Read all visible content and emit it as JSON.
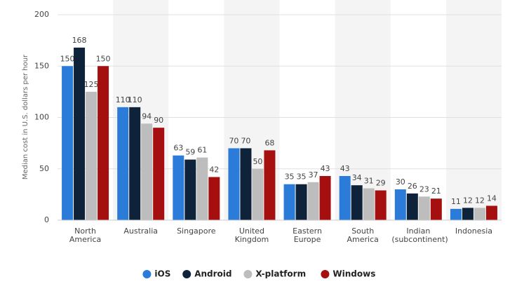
{
  "chart_data": {
    "type": "bar",
    "y_label": "Median cost in U.S. dollars per hour",
    "categories": [
      "North America",
      "Australia",
      "Singapore",
      "United Kingdom",
      "Eastern Europe",
      "South America",
      "Indian (subcontinent)",
      "Indonesia"
    ],
    "series": [
      {
        "name": "iOS",
        "color": "#2b7cd9",
        "values": [
          150,
          110,
          63,
          70,
          35,
          43,
          30,
          11
        ]
      },
      {
        "name": "Android",
        "color": "#0e2339",
        "values": [
          168,
          110,
          59,
          70,
          35,
          34,
          26,
          12
        ]
      },
      {
        "name": "X-platform",
        "color": "#bdbdbd",
        "values": [
          125,
          94,
          61,
          50,
          37,
          31,
          23,
          12
        ]
      },
      {
        "name": "Windows",
        "color": "#a50f0f",
        "values": [
          150,
          90,
          42,
          68,
          43,
          29,
          21,
          14
        ]
      }
    ],
    "ylim": [
      0,
      200
    ],
    "yticks": [
      0,
      50,
      100,
      150,
      200
    ],
    "grid": true,
    "legend": "bottom"
  }
}
